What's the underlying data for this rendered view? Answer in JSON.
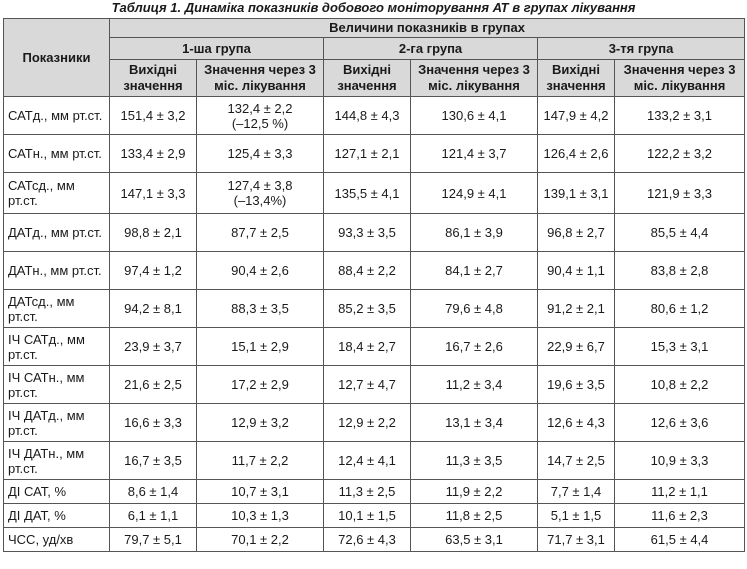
{
  "caption": "Таблиця 1. Динаміка показників добового моніторування АТ в групах лікування",
  "header": {
    "indicator": "Показники",
    "values_group": "Величини показників в групах",
    "groups": [
      "1-ша група",
      "2-га група",
      "3-тя група"
    ],
    "baseline": "Вихідні значення",
    "after": "Значення через 3 міс. лікування"
  },
  "rows": [
    {
      "label": "САТд., мм рт.ст.",
      "c1": "151,4 ± 3,2",
      "c2": "132,4 ± 2,2",
      "c2b": "(–12,5 %)",
      "c3": "144,8 ± 4,3",
      "c4": "130,6 ± 4,1",
      "c5": "147,9 ± 4,2",
      "c6": "133,2 ± 3,1"
    },
    {
      "label": "САТн., мм рт.ст.",
      "c1": "133,4 ± 2,9",
      "c2": "125,4 ± 3,3",
      "c2b": "",
      "c3": "127,1 ± 2,1",
      "c4": "121,4 ± 3,7",
      "c5": "126,4 ± 2,6",
      "c6": "122,2 ± 3,2"
    },
    {
      "label": "САТсд., мм рт.ст.",
      "c1": "147,1 ± 3,3",
      "c2": "127,4 ± 3,8",
      "c2b": "(–13,4%)",
      "c3": "135,5 ± 4,1",
      "c4": "124,9 ± 4,1",
      "c5": "139,1 ± 3,1",
      "c6": "121,9 ± 3,3"
    },
    {
      "label": "ДАТд., мм рт.ст.",
      "c1": "98,8 ± 2,1",
      "c2": "87,7 ± 2,5",
      "c2b": "",
      "c3": "93,3 ± 3,5",
      "c4": "86,1 ± 3,9",
      "c5": "96,8 ± 2,7",
      "c6": "85,5 ± 4,4"
    },
    {
      "label": "ДАТн., мм рт.ст.",
      "c1": "97,4 ± 1,2",
      "c2": "90,4 ± 2,6",
      "c2b": "",
      "c3": "88,4 ± 2,2",
      "c4": "84,1 ± 2,7",
      "c5": "90,4 ± 1,1",
      "c6": "83,8 ± 2,8"
    },
    {
      "label": "ДАТсд., мм рт.ст.",
      "c1": "94,2 ± 8,1",
      "c2": "88,3 ± 3,5",
      "c2b": "",
      "c3": "85,2 ± 3,5",
      "c4": "79,6 ± 4,8",
      "c5": "91,2 ± 2,1",
      "c6": "80,6 ± 1,2"
    },
    {
      "label": "ІЧ САТд., мм рт.ст.",
      "c1": "23,9 ± 3,7",
      "c2": "15,1 ± 2,9",
      "c2b": "",
      "c3": "18,4 ± 2,7",
      "c4": "16,7 ± 2,6",
      "c5": "22,9 ± 6,7",
      "c6": "15,3 ± 3,1"
    },
    {
      "label": "ІЧ САТн., мм рт.ст.",
      "c1": "21,6 ± 2,5",
      "c2": "17,2 ± 2,9",
      "c2b": "",
      "c3": "12,7 ± 4,7",
      "c4": "11,2 ± 3,4",
      "c5": "19,6 ± 3,5",
      "c6": "10,8 ± 2,2"
    },
    {
      "label": "ІЧ ДАТд., мм рт.ст.",
      "c1": "16,6 ± 3,3",
      "c2": "12,9 ± 3,2",
      "c2b": "",
      "c3": "12,9 ± 2,2",
      "c4": "13,1 ± 3,4",
      "c5": "12,6 ± 4,3",
      "c6": "12,6 ± 3,6"
    },
    {
      "label": "ІЧ ДАТн., мм рт.ст.",
      "c1": "16,7 ± 3,5",
      "c2": "11,7 ± 2,2",
      "c2b": "",
      "c3": "12,4 ± 4,1",
      "c4": "11,3 ± 3,5",
      "c5": "14,7 ± 2,5",
      "c6": "10,9 ± 3,3"
    },
    {
      "label": "ДІ САТ, %",
      "c1": "8,6 ± 1,4",
      "c2": "10,7 ± 3,1",
      "c2b": "",
      "c3": "11,3 ± 2,5",
      "c4": "11,9 ± 2,2",
      "c5": "7,7 ± 1,4",
      "c6": "11,2 ± 1,1"
    },
    {
      "label": "ДІ ДАТ, %",
      "c1": "6,1 ± 1,1",
      "c2": "10,3 ± 1,3",
      "c2b": "",
      "c3": "10,1 ± 1,5",
      "c4": "11,8 ± 2,5",
      "c5": "5,1 ± 1,5",
      "c6": "11,6 ± 2,3"
    },
    {
      "label": "ЧСС, уд/хв",
      "c1": "79,7 ± 5,1",
      "c2": "70,1 ± 2,2",
      "c2b": "",
      "c3": "72,6 ± 4,3",
      "c4": "63,5 ± 3,1",
      "c5": "71,7 ± 3,1",
      "c6": "61,5 ± 4,4"
    }
  ]
}
